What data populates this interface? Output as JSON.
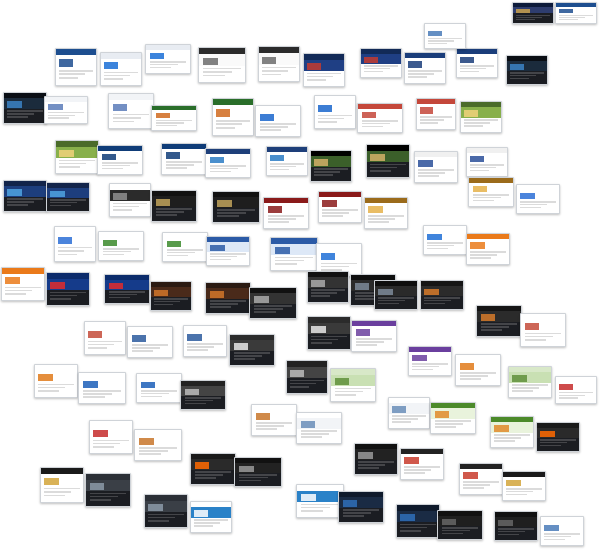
{
  "thumbnails": [
    {
      "variant": "dark",
      "header": "#0d1b3a",
      "band": "#2e3d6e",
      "block": "#c9a04a"
    },
    {
      "variant": "light",
      "header": "#1d4e8f",
      "band": "#ffffff",
      "block": "#1d4e8f"
    },
    {
      "variant": "light",
      "header": "#1d4e8f",
      "band": "#ffffff",
      "block": "#1d4e8f"
    },
    {
      "variant": "light",
      "header": "#e8ecf2",
      "band": "#ffffff",
      "block": "#1a6fd6"
    },
    {
      "variant": "light",
      "header": "#e8ecf2",
      "band": "#ffffff",
      "block": "#1a6fd6"
    },
    {
      "variant": "light",
      "header": "#2b2b2b",
      "band": "#fafafa",
      "block": "#6b6b6b"
    },
    {
      "variant": "light",
      "header": "#2b2b2b",
      "band": "#fafafa",
      "block": "#6b6b6b"
    },
    {
      "variant": "light",
      "header": "#122a57",
      "band": "#1f3f84",
      "block": "#c43b2f"
    },
    {
      "variant": "light",
      "header": "#122a57",
      "band": "#1f3f84",
      "block": "#c43b2f"
    },
    {
      "variant": "light",
      "header": "#1a3d7a",
      "band": "#ffffff",
      "block": "#1a3d7a"
    },
    {
      "variant": "light",
      "header": "#1a3d7a",
      "band": "#ffffff",
      "block": "#1a3d7a"
    },
    {
      "variant": "dark",
      "header": "#0a0e14",
      "band": "#1b2b3c",
      "block": "#3b83c4"
    },
    {
      "variant": "dark",
      "header": "#0a0e14",
      "band": "#1b2b3c",
      "block": "#3b83c4"
    },
    {
      "variant": "light",
      "header": "#f2f4f7",
      "band": "#ffffff",
      "block": "#5a7bb8"
    },
    {
      "variant": "light",
      "header": "#f2f4f7",
      "band": "#ffffff",
      "block": "#5a7bb8"
    },
    {
      "variant": "light",
      "header": "#2a6e2a",
      "band": "#ffffff",
      "block": "#d06a1e"
    },
    {
      "variant": "light",
      "header": "#2a6e2a",
      "band": "#ffffff",
      "block": "#d06a1e"
    },
    {
      "variant": "light",
      "header": "#ffffff",
      "band": "#ffffff",
      "block": "#1a66cc"
    },
    {
      "variant": "light",
      "header": "#ffffff",
      "band": "#ffffff",
      "block": "#1a66cc"
    },
    {
      "variant": "light",
      "header": "#c4473a",
      "band": "#ffffff",
      "block": "#c4473a"
    },
    {
      "variant": "light",
      "header": "#c4473a",
      "band": "#ffffff",
      "block": "#c4473a"
    },
    {
      "variant": "light",
      "header": "#4a6b2a",
      "band": "#88b04b",
      "block": "#f1d27a"
    },
    {
      "variant": "light",
      "header": "#4a6b2a",
      "band": "#88b04b",
      "block": "#f1d27a"
    },
    {
      "variant": "light",
      "header": "#0f3c78",
      "band": "#ffffff",
      "block": "#0f3c78"
    },
    {
      "variant": "light",
      "header": "#0f3c78",
      "band": "#ffffff",
      "block": "#0f3c78"
    },
    {
      "variant": "light",
      "header": "#1e3f7a",
      "band": "#ffffff",
      "block": "#2a7bc4"
    },
    {
      "variant": "light",
      "header": "#1e3f7a",
      "band": "#ffffff",
      "block": "#2a7bc4"
    },
    {
      "variant": "dark",
      "header": "#000000",
      "band": "#3b5f2a",
      "block": "#d4b067"
    },
    {
      "variant": "dark",
      "header": "#000000",
      "band": "#3b5f2a",
      "block": "#d4b067"
    },
    {
      "variant": "light",
      "header": "#f0f0f0",
      "band": "#ffffff",
      "block": "#2a4f99"
    },
    {
      "variant": "light",
      "header": "#f0f0f0",
      "band": "#ffffff",
      "block": "#2a4f99"
    },
    {
      "variant": "dark",
      "header": "#12244a",
      "band": "#1d3e7d",
      "block": "#4fa3e0"
    },
    {
      "variant": "dark",
      "header": "#12244a",
      "band": "#1d3e7d",
      "block": "#4fa3e0"
    },
    {
      "variant": "light",
      "header": "#ffffff",
      "band": "#2b2b2b",
      "block": "#8f8f8f"
    },
    {
      "variant": "dark",
      "header": "#111111",
      "band": "#1e1e1e",
      "block": "#c1a35c"
    },
    {
      "variant": "dark",
      "header": "#111111",
      "band": "#1e1e1e",
      "block": "#c1a35c"
    },
    {
      "variant": "light",
      "header": "#8a1a1a",
      "band": "#ffffff",
      "block": "#8a1a1a"
    },
    {
      "variant": "light",
      "header": "#8a1a1a",
      "band": "#ffffff",
      "block": "#8a1a1a"
    },
    {
      "variant": "light",
      "header": "#9b6b1b",
      "band": "#ffffff",
      "block": "#e5b24a"
    },
    {
      "variant": "light",
      "header": "#9b6b1b",
      "band": "#ffffff",
      "block": "#e5b24a"
    },
    {
      "variant": "light",
      "header": "#ffffff",
      "band": "#ffffff",
      "block": "#2b6fd6"
    },
    {
      "variant": "light",
      "header": "#ffffff",
      "band": "#ffffff",
      "block": "#2b6fd6"
    },
    {
      "variant": "light",
      "header": "#ffffff",
      "band": "#ffffff",
      "block": "#3b8a2b"
    },
    {
      "variant": "light",
      "header": "#ffffff",
      "band": "#ffffff",
      "block": "#3b8a2b"
    },
    {
      "variant": "light",
      "header": "#2b5aa6",
      "band": "#dde8f7",
      "block": "#2b5aa6"
    },
    {
      "variant": "light",
      "header": "#2b5aa6",
      "band": "#dde8f7",
      "block": "#2b5aa6"
    },
    {
      "variant": "light",
      "header": "#ffffff",
      "band": "#ffffff",
      "block": "#1f6fd6"
    },
    {
      "variant": "light",
      "header": "#ffffff",
      "band": "#ffffff",
      "block": "#1f6fd6"
    },
    {
      "variant": "light",
      "header": "#ea7a1a",
      "band": "#ffffff",
      "block": "#ea7a1a"
    },
    {
      "variant": "light",
      "header": "#ea7a1a",
      "band": "#ffffff",
      "block": "#ea7a1a"
    },
    {
      "variant": "dark",
      "header": "#0b2b6b",
      "band": "#153b8a",
      "block": "#e02b2b"
    },
    {
      "variant": "dark",
      "header": "#0b2b6b",
      "band": "#153b8a",
      "block": "#e02b2b"
    },
    {
      "variant": "dark",
      "header": "#2a1a12",
      "band": "#4a2a1a",
      "block": "#d2762a"
    },
    {
      "variant": "dark",
      "header": "#2a1a12",
      "band": "#4a2a1a",
      "block": "#d2762a"
    },
    {
      "variant": "dark",
      "header": "#111111",
      "band": "#333333",
      "block": "#aaaaaa"
    },
    {
      "variant": "dark",
      "header": "#111111",
      "band": "#333333",
      "block": "#aaaaaa"
    },
    {
      "variant": "dark",
      "header": "#0e0e0e",
      "band": "#2a2a2a",
      "block": "#7c8a99"
    },
    {
      "variant": "dark",
      "header": "#0e0e0e",
      "band": "#2a2a2a",
      "block": "#7c8a99"
    },
    {
      "variant": "dark",
      "header": "#151515",
      "band": "#2b2b2b",
      "block": "#d67a2a"
    },
    {
      "variant": "dark",
      "header": "#151515",
      "band": "#2b2b2b",
      "block": "#d67a2a"
    },
    {
      "variant": "light",
      "header": "#ffffff",
      "band": "#ffffff",
      "block": "#c44b3a"
    },
    {
      "variant": "light",
      "header": "#ffffff",
      "band": "#ffffff",
      "block": "#c44b3a"
    },
    {
      "variant": "light",
      "header": "#ffffff",
      "band": "#ffffff",
      "block": "#2b5a9e"
    },
    {
      "variant": "light",
      "header": "#ffffff",
      "band": "#ffffff",
      "block": "#2b5a9e"
    },
    {
      "variant": "dark",
      "header": "#2b2b2b",
      "band": "#3a3a3a",
      "block": "#e6e6e6"
    },
    {
      "variant": "dark",
      "header": "#2b2b2b",
      "band": "#3a3a3a",
      "block": "#e6e6e6"
    },
    {
      "variant": "light",
      "header": "#6a3f9e",
      "band": "#ffffff",
      "block": "#6a3f9e"
    },
    {
      "variant": "light",
      "header": "#6a3f9e",
      "band": "#ffffff",
      "block": "#6a3f9e"
    },
    {
      "variant": "light",
      "header": "#ffffff",
      "band": "#ffffff",
      "block": "#e07a1a"
    },
    {
      "variant": "light",
      "header": "#ffffff",
      "band": "#ffffff",
      "block": "#e07a1a"
    },
    {
      "variant": "light",
      "header": "#ffffff",
      "band": "#ffffff",
      "block": "#1c5fb8"
    },
    {
      "variant": "light",
      "header": "#ffffff",
      "band": "#ffffff",
      "block": "#1c5fb8"
    },
    {
      "variant": "dark",
      "header": "#222222",
      "band": "#444444",
      "block": "#bbbbbb"
    },
    {
      "variant": "dark",
      "header": "#222222",
      "band": "#444444",
      "block": "#bbbbbb"
    },
    {
      "variant": "light",
      "header": "#d8e8c8",
      "band": "#c9e0b3",
      "block": "#5f8f3a"
    },
    {
      "variant": "light",
      "header": "#d8e8c8",
      "band": "#c9e0b3",
      "block": "#5f8f3a"
    },
    {
      "variant": "light",
      "header": "#ffffff",
      "band": "#ffffff",
      "block": "#c62b2b"
    },
    {
      "variant": "light",
      "header": "#ffffff",
      "band": "#ffffff",
      "block": "#c62b2b"
    },
    {
      "variant": "light",
      "header": "#ffffff",
      "band": "#ffffff",
      "block": "#c8752a"
    },
    {
      "variant": "light",
      "header": "#ffffff",
      "band": "#ffffff",
      "block": "#c8752a"
    },
    {
      "variant": "light",
      "header": "#ffffff",
      "band": "#f2f4f7",
      "block": "#6a8db8"
    },
    {
      "variant": "light",
      "header": "#ffffff",
      "band": "#f2f4f7",
      "block": "#6a8db8"
    },
    {
      "variant": "light",
      "header": "#4c8a2a",
      "band": "#e9f3dc",
      "block": "#e08a2a"
    },
    {
      "variant": "light",
      "header": "#4c8a2a",
      "band": "#e9f3dc",
      "block": "#e08a2a"
    },
    {
      "variant": "dark",
      "header": "#1a1a1a",
      "band": "#2a2a2a",
      "block": "#ff6a00"
    },
    {
      "variant": "dark",
      "header": "#1a1a1a",
      "band": "#2a2a2a",
      "block": "#ff6a00"
    },
    {
      "variant": "dark",
      "header": "#111111",
      "band": "#222222",
      "block": "#999999"
    },
    {
      "variant": "dark",
      "header": "#111111",
      "band": "#222222",
      "block": "#999999"
    },
    {
      "variant": "light",
      "header": "#222222",
      "band": "#ffffff",
      "block": "#c83b2b"
    },
    {
      "variant": "light",
      "header": "#222222",
      "band": "#ffffff",
      "block": "#c83b2b"
    },
    {
      "variant": "light",
      "header": "#1a1a1a",
      "band": "#ffffff",
      "block": "#d2a43a"
    },
    {
      "variant": "light",
      "header": "#1a1a1a",
      "band": "#ffffff",
      "block": "#d2a43a"
    },
    {
      "variant": "dark",
      "header": "#2b2f36",
      "band": "#3a3f46",
      "block": "#8c9aa8"
    },
    {
      "variant": "dark",
      "header": "#2b2f36",
      "band": "#3a3f46",
      "block": "#8c9aa8"
    },
    {
      "variant": "light",
      "header": "#ffffff",
      "band": "#2a82c8",
      "block": "#ffffff"
    },
    {
      "variant": "light",
      "header": "#ffffff",
      "band": "#2a82c8",
      "block": "#ffffff"
    },
    {
      "variant": "dark",
      "header": "#0f1a2b",
      "band": "#1a2b44",
      "block": "#2f6fb8"
    },
    {
      "variant": "dark",
      "header": "#0f1a2b",
      "band": "#1a2b44",
      "block": "#2f6fb8"
    },
    {
      "variant": "dark",
      "header": "#111111",
      "band": "#1f1f1f",
      "block": "#666666"
    },
    {
      "variant": "dark",
      "header": "#111111",
      "band": "#1f1f1f",
      "block": "#666666"
    },
    {
      "variant": "light",
      "header": "#ffffff",
      "band": "#ffffff",
      "block": "#4a7bb8"
    },
    {
      "variant": "light",
      "header": "#ffffff",
      "band": "#ffffff",
      "block": "#4a7bb8"
    }
  ]
}
